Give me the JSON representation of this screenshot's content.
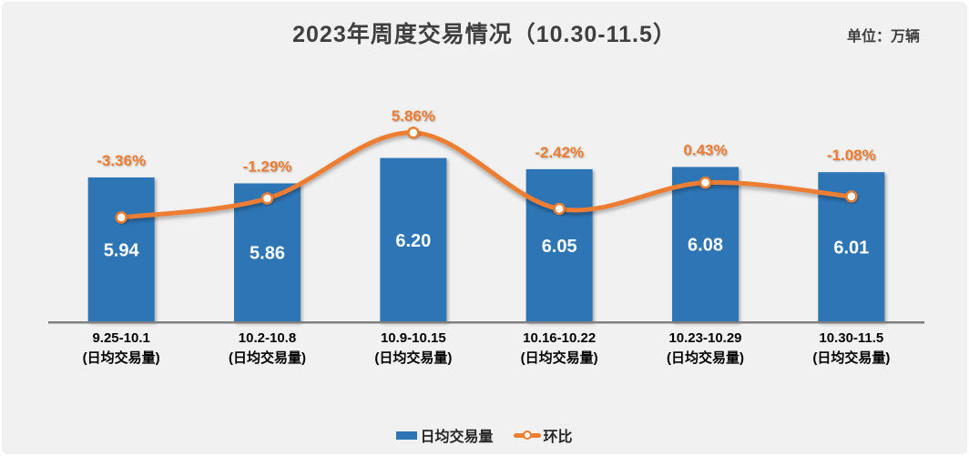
{
  "header": {
    "title": "2023年周度交易情况（10.30-11.5）",
    "unit_label": "单位：万辆"
  },
  "legend": {
    "items": [
      {
        "label": "日均交易量",
        "type": "bar",
        "color": "#2E74B5"
      },
      {
        "label": "环比",
        "type": "line",
        "color": "#ED7D31"
      }
    ],
    "position": "bottom"
  },
  "chart_data": {
    "type": "bar+line",
    "title": "2023年周度交易情况（10.30-11.5）",
    "unit": "万辆",
    "categories": [
      "9.25-10.1",
      "10.2-10.8",
      "10.9-10.15",
      "10.16-10.22",
      "10.23-10.29",
      "10.30-11.5"
    ],
    "category_sublabel": "(日均交易量)",
    "series": [
      {
        "name": "日均交易量",
        "type": "bar",
        "values": [
          5.94,
          5.86,
          6.2,
          6.05,
          6.08,
          6.01
        ],
        "data_labels": [
          "5.94",
          "5.86",
          "6.20",
          "6.05",
          "6.08",
          "6.01"
        ],
        "color": "#2E74B5",
        "label_color": "#FFFFFF",
        "axis_min": 4.0
      },
      {
        "name": "环比",
        "type": "line",
        "values": [
          -3.36,
          -1.29,
          5.86,
          -2.42,
          0.43,
          -1.08
        ],
        "data_labels": [
          "-3.36%",
          "-1.29%",
          "5.86%",
          "-2.42%",
          "0.43%",
          "-1.08%"
        ],
        "color": "#ED7D31",
        "marker": "white-circle-orange-ring",
        "smooth": true
      }
    ],
    "grid": false,
    "legend_position": "bottom",
    "value_axis_visible": false
  },
  "colors": {
    "background": "#F1F1F1",
    "card_border": "#FFFFFF",
    "axis_line": "#808080",
    "title_text": "#3F3F3F",
    "xlabel_text": "#000000",
    "legend_text": "#262626",
    "bar": "#2E74B5",
    "line": "#ED7D31",
    "bar_label": "#FFFFFF"
  }
}
